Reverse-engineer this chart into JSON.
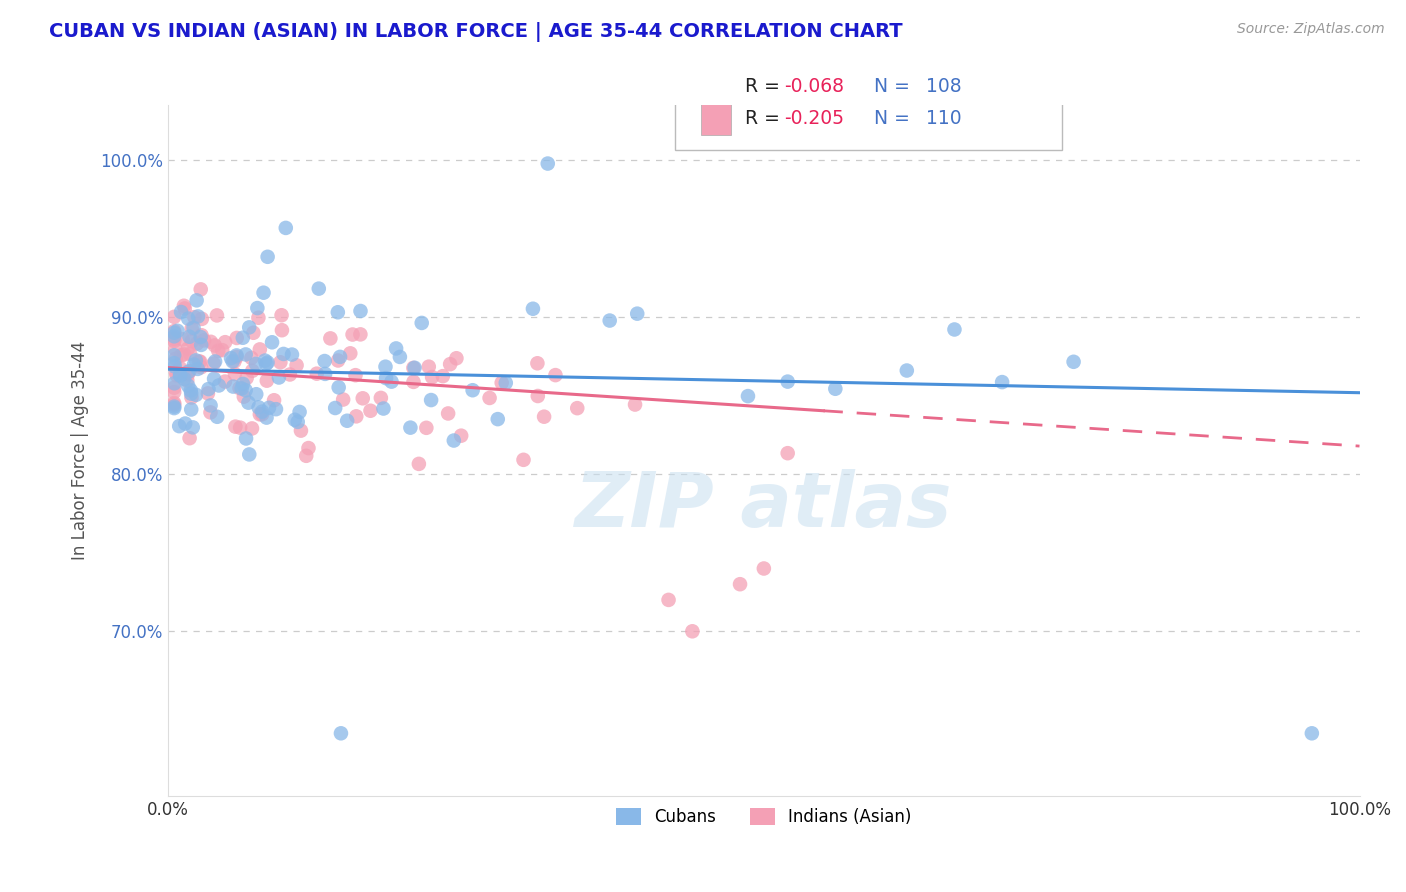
{
  "title": "CUBAN VS INDIAN (ASIAN) IN LABOR FORCE | AGE 35-44 CORRELATION CHART",
  "source": "Source: ZipAtlas.com",
  "ylabel": "In Labor Force | Age 35-44",
  "xlim": [
    0.0,
    1.0
  ],
  "ylim": [
    0.595,
    1.035
  ],
  "ytick_labels": [
    "70.0%",
    "80.0%",
    "90.0%",
    "100.0%"
  ],
  "ytick_values": [
    0.7,
    0.8,
    0.9,
    1.0
  ],
  "xtick_labels": [
    "0.0%",
    "100.0%"
  ],
  "xtick_values": [
    0.0,
    1.0
  ],
  "cuban_color": "#89b8e8",
  "indian_color": "#f4a0b5",
  "cuban_line_color": "#4a90d9",
  "indian_line_color": "#e8698a",
  "cuban_R": -0.068,
  "cuban_N": 108,
  "indian_R": -0.205,
  "indian_N": 110,
  "legend_label_cuban": "Cubans",
  "legend_label_indian": "Indians (Asian)",
  "title_color": "#1a1acd",
  "r_value_color": "#e8225a",
  "n_label_color": "#4472c4",
  "background_color": "#ffffff",
  "grid_color": "#cccccc",
  "axis_label_color": "#4472c4",
  "watermark_color": "#c8dff0",
  "cuban_line_y0": 0.867,
  "cuban_line_y1": 0.852,
  "indian_line_y0": 0.868,
  "indian_line_y1": 0.818
}
